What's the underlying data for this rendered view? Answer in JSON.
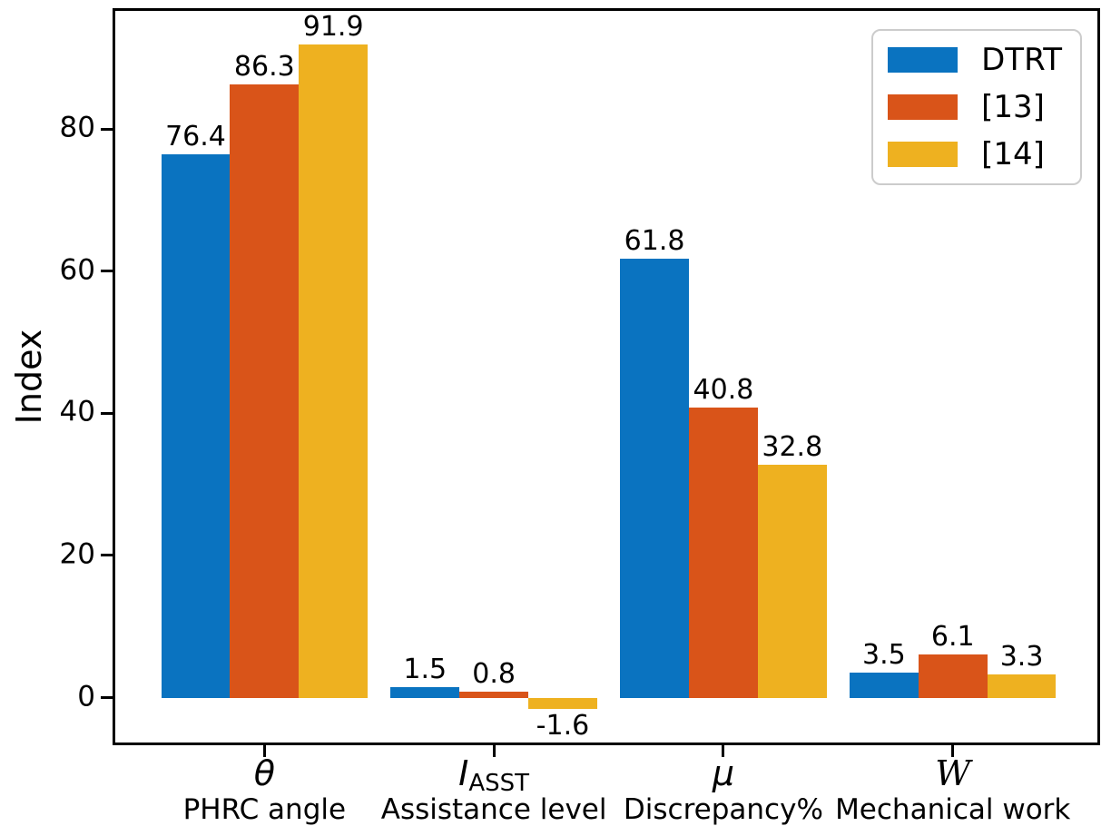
{
  "chart_data": {
    "type": "bar",
    "title": "",
    "xlabel": "",
    "ylabel": "Index",
    "grid": false,
    "legend_position": "upper right",
    "axis_color": "#000000",
    "legend_border_color": "#cccccc",
    "ylim": [
      -6.3,
      96.6
    ],
    "xlim": [
      -0.65,
      3.63
    ],
    "bar_width": 0.3,
    "yticks": [
      0,
      20,
      40,
      60,
      80
    ],
    "categories": [
      {
        "symbol": "θ",
        "subscript": "",
        "style": "italic",
        "description": "PHRC angle"
      },
      {
        "symbol": "I",
        "subscript": "ASST",
        "style": "italic",
        "description": "Assistance level"
      },
      {
        "symbol": "μ",
        "subscript": "",
        "style": "italic",
        "description": "Discrepancy%"
      },
      {
        "symbol": "W",
        "subscript": "",
        "style": "script",
        "description": "Mechanical work"
      }
    ],
    "series": [
      {
        "name": "DTRT",
        "color": "#0a73c0",
        "values": [
          76.4,
          1.5,
          61.8,
          3.5
        ]
      },
      {
        "name": "[13]",
        "color": "#d95419",
        "values": [
          86.3,
          0.8,
          40.8,
          6.1
        ]
      },
      {
        "name": "[14]",
        "color": "#eeb120",
        "values": [
          91.9,
          -1.6,
          32.8,
          3.3
        ]
      }
    ]
  }
}
